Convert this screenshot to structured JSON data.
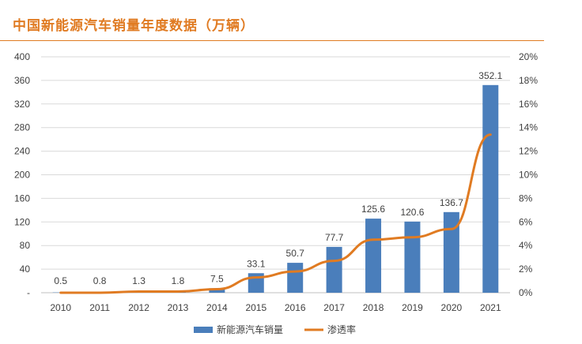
{
  "chart_data": {
    "type": "bar",
    "title": "中国新能源汽车销量年度数据（万辆）",
    "categories": [
      "2010",
      "2011",
      "2012",
      "2013",
      "2014",
      "2015",
      "2016",
      "2017",
      "2018",
      "2019",
      "2020",
      "2021"
    ],
    "series": [
      {
        "name": "新能源汽车销量",
        "type": "bar",
        "axis": "left",
        "values": [
          0.5,
          0.8,
          1.3,
          1.8,
          7.5,
          33.1,
          50.7,
          77.7,
          125.6,
          120.6,
          136.7,
          352.1
        ],
        "color": "#4A7EBB"
      },
      {
        "name": "渗透率",
        "type": "line",
        "axis": "right",
        "values": [
          0.0,
          0.0,
          0.1,
          0.1,
          0.3,
          1.3,
          1.8,
          2.7,
          4.5,
          4.7,
          5.4,
          13.4
        ],
        "color": "#E07B22"
      }
    ],
    "data_labels": [
      "0.5",
      "0.8",
      "1.3",
      "1.8",
      "7.5",
      "33.1",
      "50.7",
      "77.7",
      "125.6",
      "120.6",
      "136.7",
      "352.1"
    ],
    "left_axis": {
      "ylim": [
        0,
        400
      ],
      "ticks": [
        "-",
        "40",
        "80",
        "120",
        "160",
        "200",
        "240",
        "280",
        "320",
        "360",
        "400"
      ]
    },
    "right_axis": {
      "ylim": [
        0,
        20
      ],
      "ticks": [
        "0%",
        "2%",
        "4%",
        "6%",
        "8%",
        "10%",
        "12%",
        "14%",
        "16%",
        "18%",
        "20%"
      ]
    },
    "grid": true,
    "legend_position": "bottom"
  }
}
